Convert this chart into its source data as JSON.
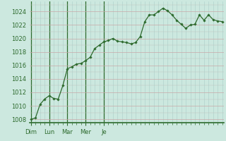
{
  "background_color": "#cce8df",
  "line_color": "#2d6a2d",
  "marker_color": "#2d6a2d",
  "axis_color": "#2d6a2d",
  "tick_label_color": "#2d6a2d",
  "x_tick_labels": [
    "Dim",
    "Lun",
    "Mar",
    "Mer",
    "Je"
  ],
  "ylim": [
    1007.5,
    1025.5
  ],
  "yticks": [
    1008,
    1010,
    1012,
    1014,
    1016,
    1018,
    1020,
    1022,
    1024
  ],
  "num_days": 4,
  "hours_per_day": 24,
  "data_y": [
    1008.0,
    1008.2,
    1010.2,
    1011.0,
    1011.5,
    1011.1,
    1011.0,
    1013.0,
    1015.5,
    1015.8,
    1016.2,
    1016.3,
    1016.7,
    1017.2,
    1018.5,
    1019.0,
    1019.5,
    1019.7,
    1020.0,
    1019.6,
    1019.5,
    1019.4,
    1019.2,
    1019.4,
    1020.3,
    1022.5,
    1023.5,
    1023.5,
    1024.0,
    1024.5,
    1024.1,
    1023.5,
    1022.7,
    1022.1,
    1021.5,
    1022.0,
    1022.1,
    1023.5,
    1022.7,
    1023.5,
    1022.8,
    1022.6,
    1022.5
  ]
}
